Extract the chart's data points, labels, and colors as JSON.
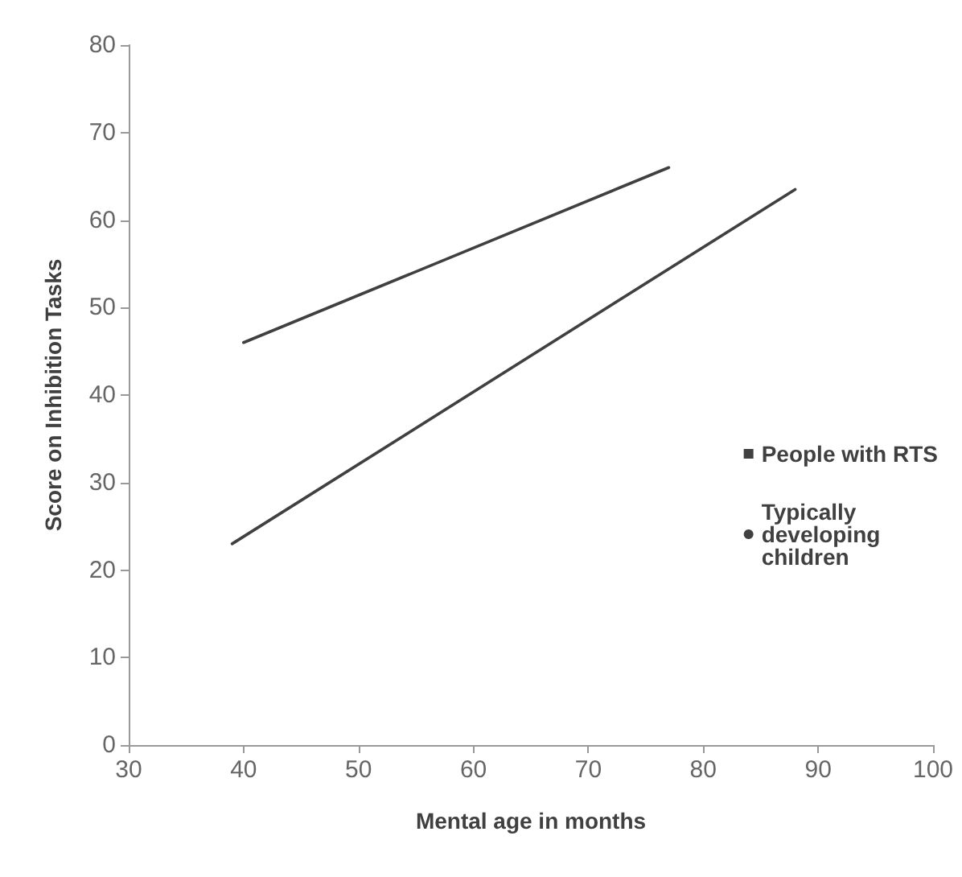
{
  "chart_data": {
    "type": "line",
    "xlabel": "Mental age in months",
    "ylabel": "Score on Inhibition Tasks",
    "series": [
      {
        "name": "People with RTS",
        "color": "#404040",
        "x": [
          40,
          77
        ],
        "values": [
          46,
          66
        ]
      },
      {
        "name": "Typically developing children",
        "color": "#404040",
        "x": [
          39,
          88
        ],
        "values": [
          23,
          63.5
        ]
      }
    ],
    "xlim": [
      30,
      100
    ],
    "xticks": [
      30,
      40,
      50,
      60,
      70,
      80,
      90,
      100
    ],
    "ylim": [
      0,
      80
    ],
    "yticks": [
      0,
      10,
      20,
      30,
      40,
      50,
      60,
      70,
      80
    ],
    "grid": false,
    "legend": "right",
    "marker": "none",
    "line_style": "solid"
  }
}
